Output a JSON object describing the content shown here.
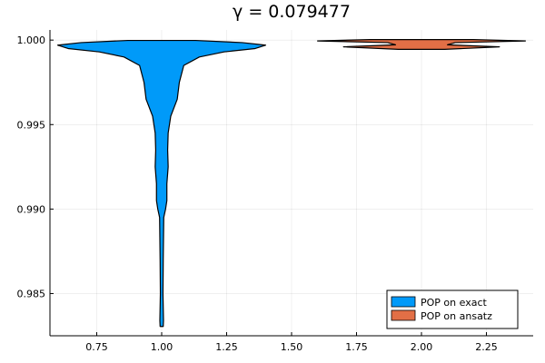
{
  "chart_data": {
    "type": "violin",
    "title": "γ = 0.079477",
    "xlabel": "",
    "ylabel": "",
    "xlim": [
      0.57,
      2.43
    ],
    "ylim": [
      0.9825,
      1.0006
    ],
    "x_ticks": [
      {
        "value": 0.75,
        "label": "0.75"
      },
      {
        "value": 1.0,
        "label": "1.00"
      },
      {
        "value": 1.25,
        "label": "1.25"
      },
      {
        "value": 1.5,
        "label": "1.50"
      },
      {
        "value": 1.75,
        "label": "1.75"
      },
      {
        "value": 2.0,
        "label": "2.00"
      },
      {
        "value": 2.25,
        "label": "2.25"
      }
    ],
    "y_ticks": [
      {
        "value": 0.985,
        "label": "0.985"
      },
      {
        "value": 0.99,
        "label": "0.990"
      },
      {
        "value": 0.995,
        "label": "0.995"
      },
      {
        "value": 1.0,
        "label": "1.000"
      }
    ],
    "grid": true,
    "legend_position": "bottom-right",
    "series": [
      {
        "name": "POP on exact",
        "color": "#009af9",
        "position": 1.0,
        "profile": [
          {
            "y": 0.98305,
            "hw": 0.006
          },
          {
            "y": 0.9834,
            "hw": 0.007
          },
          {
            "y": 0.985,
            "hw": 0.005
          },
          {
            "y": 0.987,
            "hw": 0.006
          },
          {
            "y": 0.9895,
            "hw": 0.008
          },
          {
            "y": 0.99,
            "hw": 0.015
          },
          {
            "y": 0.9905,
            "hw": 0.02
          },
          {
            "y": 0.9915,
            "hw": 0.02
          },
          {
            "y": 0.9925,
            "hw": 0.025
          },
          {
            "y": 0.9935,
            "hw": 0.023
          },
          {
            "y": 0.9945,
            "hw": 0.025
          },
          {
            "y": 0.9955,
            "hw": 0.035
          },
          {
            "y": 0.9965,
            "hw": 0.06
          },
          {
            "y": 0.9975,
            "hw": 0.068
          },
          {
            "y": 0.9985,
            "hw": 0.085
          },
          {
            "y": 0.999,
            "hw": 0.145
          },
          {
            "y": 0.9993,
            "hw": 0.24
          },
          {
            "y": 0.9995,
            "hw": 0.36
          },
          {
            "y": 0.9997,
            "hw": 0.4
          },
          {
            "y": 0.99985,
            "hw": 0.31
          },
          {
            "y": 0.99998,
            "hw": 0.13
          }
        ]
      },
      {
        "name": "POP on ansatz",
        "color": "#e26f46",
        "position": 2.0,
        "profile": [
          {
            "y": 0.99945,
            "hw": 0.09
          },
          {
            "y": 0.9996,
            "hw": 0.3
          },
          {
            "y": 0.99972,
            "hw": 0.1
          },
          {
            "y": 0.99985,
            "hw": 0.13
          },
          {
            "y": 0.99995,
            "hw": 0.4
          },
          {
            "y": 1.00003,
            "hw": 0.2
          }
        ]
      }
    ]
  }
}
